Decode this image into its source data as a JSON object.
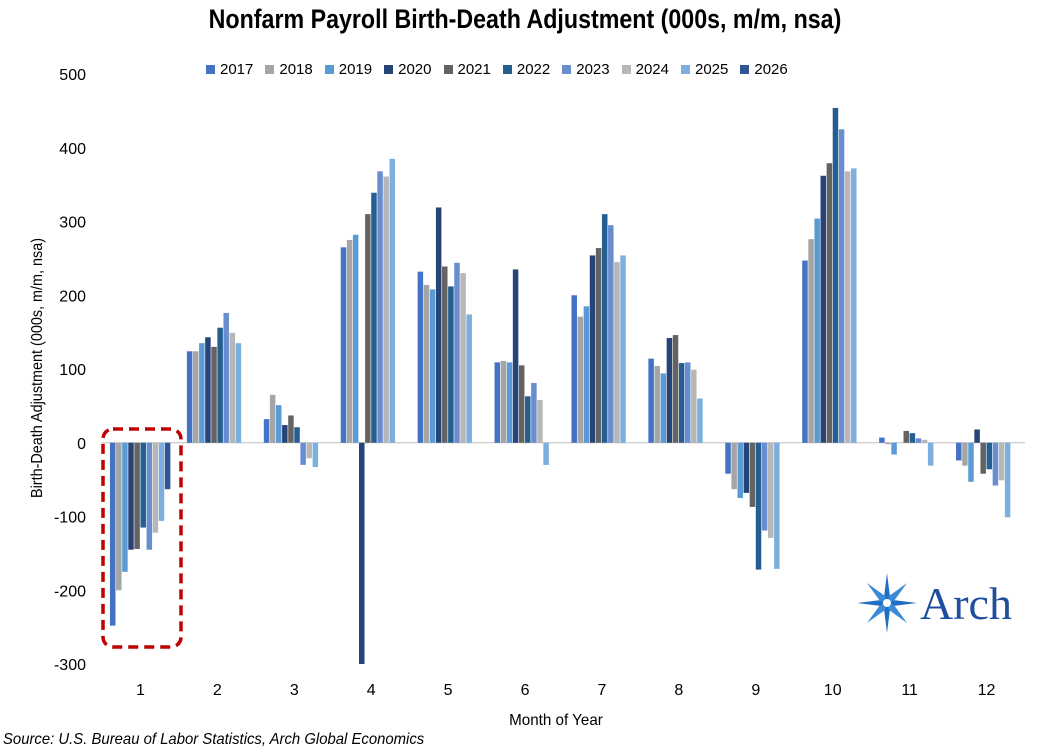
{
  "chart_data": {
    "type": "bar",
    "title": "Nonfarm Payroll Birth-Death Adjustment (000s, m/m, nsa)",
    "xlabel": "Month of Year",
    "ylabel": "Birth-Death Adjustment (000s, m/m, nsa)",
    "ylim": [
      -300,
      500
    ],
    "yticks": [
      "500",
      "400",
      "300",
      "200",
      "100",
      "0",
      "-100",
      "-200",
      "-300"
    ],
    "categories": [
      "1",
      "2",
      "3",
      "4",
      "5",
      "6",
      "7",
      "8",
      "9",
      "10",
      "11",
      "12"
    ],
    "legend_position": "top",
    "grid": false,
    "series": [
      {
        "name": "2017",
        "color": "#4472c4",
        "values": [
          -248,
          124,
          32,
          265,
          232,
          109,
          200,
          114,
          -42,
          247,
          7,
          -24
        ]
      },
      {
        "name": "2018",
        "color": "#a5a5a5",
        "values": [
          -200,
          124,
          65,
          275,
          214,
          111,
          171,
          104,
          -63,
          276,
          -2,
          -31
        ]
      },
      {
        "name": "2019",
        "color": "#5b9bd5",
        "values": [
          -175,
          135,
          51,
          282,
          208,
          109,
          185,
          94,
          -75,
          304,
          -16,
          -53
        ]
      },
      {
        "name": "2020",
        "color": "#264478",
        "values": [
          -145,
          143,
          24,
          -300,
          319,
          235,
          254,
          142,
          -68,
          362,
          null,
          18
        ]
      },
      {
        "name": "2021",
        "color": "#636363",
        "values": [
          -144,
          130,
          37,
          310,
          239,
          105,
          264,
          146,
          -87,
          379,
          16,
          -42
        ]
      },
      {
        "name": "2022",
        "color": "#255e91",
        "values": [
          -115,
          156,
          21,
          339,
          212,
          63,
          310,
          108,
          -172,
          454,
          13,
          -36
        ]
      },
      {
        "name": "2023",
        "color": "#698ed0",
        "values": [
          -145,
          176,
          -30,
          368,
          244,
          81,
          295,
          109,
          -119,
          425,
          6,
          -58
        ]
      },
      {
        "name": "2024",
        "color": "#b7b7b7",
        "values": [
          -122,
          149,
          -21,
          361,
          230,
          58,
          245,
          99,
          -129,
          368,
          4,
          -51
        ]
      },
      {
        "name": "2025",
        "color": "#7cafdd",
        "values": [
          -106,
          135,
          -33,
          385,
          174,
          -30,
          254,
          60,
          -171,
          372,
          -31,
          -101
        ]
      },
      {
        "name": "2026",
        "color": "#2f5597",
        "values": [
          -63,
          null,
          null,
          null,
          null,
          null,
          null,
          null,
          null,
          null,
          null,
          null
        ]
      }
    ],
    "annotation": "dashed red box highlighting month 1"
  },
  "source": "Source: U.S. Bureau of Labor Statistics, Arch Global Economics",
  "logo": {
    "text": "Arch",
    "color": "#1f4e9c"
  }
}
